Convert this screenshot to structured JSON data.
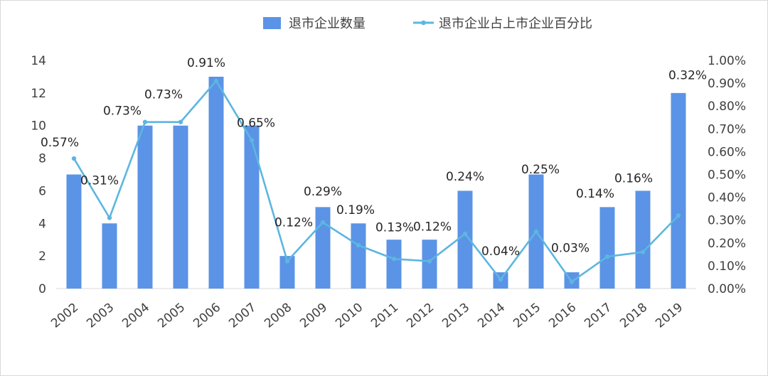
{
  "chart_data": {
    "type": "bar",
    "categories": [
      "2002",
      "2003",
      "2004",
      "2005",
      "2006",
      "2007",
      "2008",
      "2009",
      "2010",
      "2011",
      "2012",
      "2013",
      "2014",
      "2015",
      "2016",
      "2017",
      "2018",
      "2019"
    ],
    "series": [
      {
        "name": "退市企业数量",
        "type": "bar",
        "axis": "left",
        "color": "#5B93E6",
        "values": [
          7,
          4,
          10,
          10,
          13,
          10,
          2,
          5,
          4,
          3,
          3,
          6,
          1,
          7,
          1,
          5,
          6,
          12
        ]
      },
      {
        "name": "退市企业占上市企业百分比",
        "type": "line",
        "axis": "right",
        "color": "#5DB6E0",
        "values": [
          0.57,
          0.31,
          0.73,
          0.73,
          0.91,
          0.65,
          0.12,
          0.29,
          0.19,
          0.13,
          0.12,
          0.24,
          0.04,
          0.25,
          0.03,
          0.14,
          0.16,
          0.32
        ],
        "labels": [
          "0.57%",
          "0.31%",
          "0.73%",
          "0.73%",
          "0.91%",
          "0.65%",
          "0.12%",
          "0.29%",
          "0.19%",
          "0.13%",
          "0.12%",
          "0.24%",
          "0.04%",
          "0.25%",
          "0.03%",
          "0.14%",
          "0.16%",
          "0.32%"
        ]
      }
    ],
    "y_left": {
      "min": 0,
      "max": 14,
      "ticks": [
        "0",
        "2",
        "4",
        "6",
        "8",
        "10",
        "12",
        "14"
      ]
    },
    "y_right": {
      "min": 0,
      "max": 1,
      "ticks": [
        "0.00%",
        "0.10%",
        "0.20%",
        "0.30%",
        "0.40%",
        "0.50%",
        "0.60%",
        "0.70%",
        "0.80%",
        "0.90%",
        "1.00%"
      ]
    },
    "grid": false,
    "legend_position": "top-center"
  }
}
